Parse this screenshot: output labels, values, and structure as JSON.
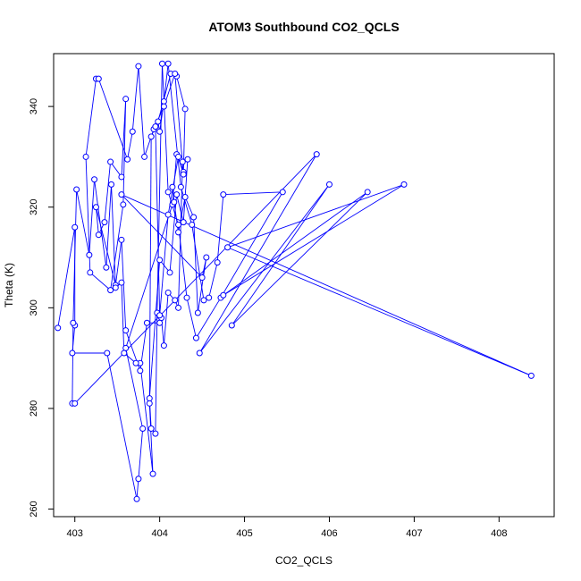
{
  "chart_data": {
    "type": "line",
    "title": "ATOM3 Southbound CO2_QCLS",
    "xlabel": "CO2_QCLS",
    "ylabel": "Theta (K)",
    "xlim": [
      402.75,
      408.65
    ],
    "ylim": [
      258.5,
      350.5
    ],
    "xticks": [
      "403",
      "404",
      "405",
      "406",
      "407",
      "408"
    ],
    "yticks": [
      "260",
      "280",
      "300",
      "320",
      "340"
    ],
    "grid": false,
    "colors": {
      "series": "#0000ff",
      "axis": "#000000"
    },
    "series": [
      {
        "x": [
          402.8,
          403.0,
          403.0,
          402.97,
          403.38,
          403.73,
          403.75,
          403.8,
          403.6,
          404.15,
          404.2,
          404.28,
          404.3,
          404.2,
          404.13,
          403.98,
          404.0,
          404.05,
          404.1,
          404.25,
          404.38,
          404.52,
          404.58,
          404.68,
          404.75,
          405.45,
          404.72,
          404.43,
          404.32,
          404.22,
          404.1,
          404.03,
          403.97,
          403.95,
          403.9,
          403.88,
          404.0,
          404.12,
          404.2,
          404.28,
          404.33,
          404.27,
          404.22,
          404.18,
          404.1,
          404.05,
          404.02,
          404.0,
          403.85,
          403.77,
          403.6,
          403.55,
          403.48,
          403.25,
          403.28,
          403.35,
          403.42,
          403.55,
          403.6,
          403.57,
          403.42,
          403.18,
          403.13,
          403.25,
          403.28,
          403.62,
          403.68,
          403.75,
          403.82,
          403.93,
          404.05,
          404.18,
          404.28,
          404.22,
          404.1,
          404.0,
          403.95,
          403.9,
          403.88,
          403.92,
          403.77,
          403.72,
          403.58,
          403.55,
          403.48,
          403.43,
          403.37,
          403.23,
          403.17,
          403.02,
          402.98,
          402.97,
          403.0,
          405.85,
          404.47,
          406.0,
          404.85,
          406.45,
          404.75,
          406.88,
          404.8,
          408.38,
          403.55,
          404.5,
          404.55,
          404.45,
          404.4,
          404.3,
          404.22,
          404.17,
          404.15
        ],
        "y": [
          296.0,
          316.0,
          296.5,
          291.0,
          291.0,
          262.0,
          266.0,
          276.0,
          292.0,
          320.5,
          330.5,
          327.0,
          339.5,
          346.0,
          346.5,
          337.0,
          335.0,
          341.0,
          348.5,
          324.0,
          316.5,
          301.5,
          302.0,
          309.0,
          322.5,
          323.0,
          302.0,
          294.0,
          302.0,
          316.5,
          323.0,
          348.5,
          299.0,
          275.0,
          276.0,
          282.0,
          309.5,
          307.0,
          322.5,
          317.0,
          329.5,
          329.0,
          300.0,
          301.5,
          303.0,
          292.5,
          298.0,
          297.0,
          297.0,
          287.5,
          295.5,
          313.5,
          304.5,
          320.0,
          314.5,
          317.0,
          329.0,
          326.0,
          341.5,
          320.5,
          303.5,
          307.0,
          330.0,
          345.5,
          345.5,
          329.5,
          335.0,
          348.0,
          330.0,
          335.5,
          340.0,
          346.5,
          326.5,
          330.0,
          318.5,
          298.5,
          336.0,
          334.0,
          281.0,
          267.0,
          289.0,
          289.0,
          291.0,
          305.0,
          304.0,
          324.5,
          308.0,
          325.5,
          310.5,
          323.5,
          297.0,
          281.0,
          281.0,
          330.5,
          291.0,
          324.5,
          296.5,
          323.0,
          302.5,
          324.5,
          312.0,
          286.5,
          322.5,
          306.0,
          310.0,
          299.0,
          318.0,
          322.0,
          315.0,
          321.0,
          324.0
        ]
      }
    ]
  }
}
